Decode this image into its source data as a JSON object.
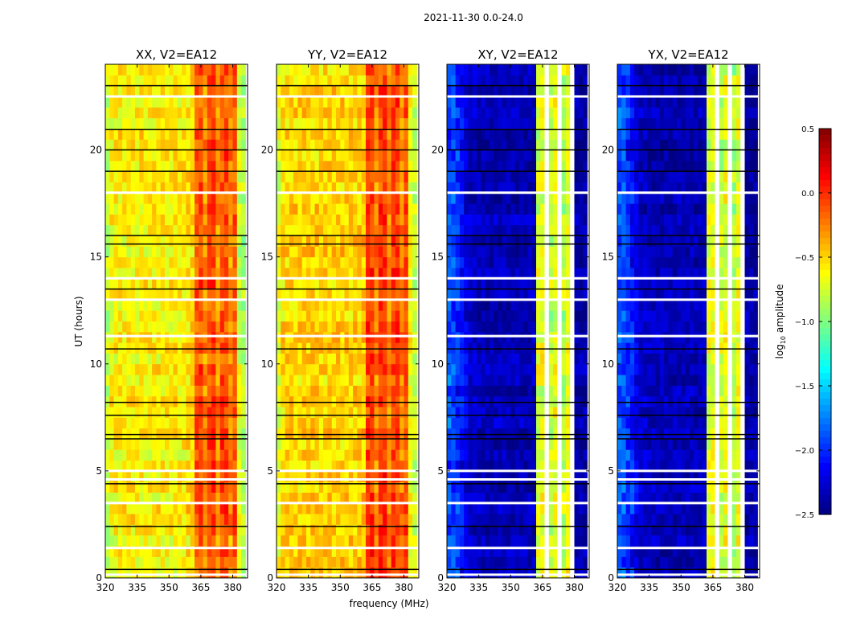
{
  "chart_data": {
    "type": "heatmap",
    "suptitle": "2021-11-30 0.0-24.0",
    "xlabel": "frequency (MHz)",
    "ylabel": "UT (hours)",
    "xlim": [
      320,
      387
    ],
    "ylim": [
      0,
      24
    ],
    "xticks": [
      "320",
      "335",
      "350",
      "365",
      "380"
    ],
    "xtick_values": [
      320,
      335,
      350,
      365,
      380
    ],
    "yticks": [
      "0",
      "5",
      "10",
      "15",
      "20"
    ],
    "ytick_values": [
      0,
      5,
      10,
      15,
      20
    ],
    "freq_bin_start": 320,
    "freq_bin_width": 2,
    "time_bin_hours": 0.5,
    "colorbar": {
      "label_main": "log",
      "label_sub": "10",
      "label_rest": " amplitude",
      "vmin": -2.5,
      "vmax": 0.5,
      "ticks": [
        "0.5",
        "0.0",
        "−0.5",
        "−1.0",
        "−1.5",
        "−2.0",
        "−2.5"
      ],
      "tick_values": [
        0.5,
        0.0,
        -0.5,
        -1.0,
        -1.5,
        -2.0,
        -2.5
      ],
      "colormap": "jet"
    },
    "panels": [
      {
        "title": "XX, V2=EA12",
        "spectrum": [
          -0.8,
          -0.65,
          -0.6,
          -0.6,
          -0.6,
          -0.6,
          -0.6,
          -0.6,
          -0.6,
          -0.6,
          -0.6,
          -0.6,
          -0.6,
          -0.6,
          -0.6,
          -0.6,
          -0.6,
          -0.6,
          -0.6,
          -0.55,
          -0.5,
          -0.15,
          -0.1,
          -0.3,
          -0.1,
          -0.05,
          -0.3,
          -0.1,
          -0.1,
          -0.3,
          -0.15,
          -0.75,
          -0.85
        ]
      },
      {
        "title": "YY, V2=EA12",
        "spectrum": [
          -0.7,
          -0.55,
          -0.5,
          -0.5,
          -0.5,
          -0.5,
          -0.5,
          -0.5,
          -0.5,
          -0.5,
          -0.5,
          -0.5,
          -0.5,
          -0.5,
          -0.5,
          -0.5,
          -0.5,
          -0.5,
          -0.5,
          -0.5,
          -0.45,
          -0.05,
          0.0,
          -0.25,
          -0.05,
          0.0,
          -0.25,
          -0.05,
          -0.05,
          -0.25,
          -0.1,
          -0.65,
          -0.8
        ]
      },
      {
        "title": "XY, V2=EA12",
        "spectrum": [
          -1.9,
          -1.9,
          -2.0,
          -2.1,
          -2.2,
          -2.3,
          -2.3,
          -2.35,
          -2.35,
          -2.35,
          -2.35,
          -2.35,
          -2.35,
          -2.35,
          -2.35,
          -2.35,
          -2.35,
          -2.35,
          -2.35,
          -2.35,
          -2.35,
          -0.75,
          -0.7,
          null,
          -0.8,
          -0.7,
          null,
          -0.85,
          -0.7,
          null,
          -2.4,
          -2.4,
          -2.4
        ]
      },
      {
        "title": "YX, V2=EA12",
        "spectrum": [
          -1.9,
          -1.9,
          -2.0,
          -2.1,
          -2.2,
          -2.3,
          -2.3,
          -2.35,
          -2.35,
          -2.35,
          -2.35,
          -2.35,
          -2.35,
          -2.35,
          -2.35,
          -2.35,
          -2.35,
          -2.35,
          -2.35,
          -2.35,
          -2.35,
          -0.75,
          -0.7,
          null,
          -0.8,
          -0.7,
          null,
          -0.85,
          -0.7,
          null,
          -2.4,
          -2.4,
          -2.4
        ]
      }
    ],
    "flagged_rows": [
      {
        "hour": 23.0,
        "kind": "black"
      },
      {
        "hour": 22.5,
        "kind": "white"
      },
      {
        "hour": 20.95,
        "kind": "black"
      },
      {
        "hour": 20.0,
        "kind": "black"
      },
      {
        "hour": 19.0,
        "kind": "black"
      },
      {
        "hour": 18.0,
        "kind": "white"
      },
      {
        "hour": 16.0,
        "kind": "black"
      },
      {
        "hour": 15.6,
        "kind": "black"
      },
      {
        "hour": 14.0,
        "kind": "white"
      },
      {
        "hour": 13.5,
        "kind": "black"
      },
      {
        "hour": 13.0,
        "kind": "white"
      },
      {
        "hour": 11.3,
        "kind": "white"
      },
      {
        "hour": 10.7,
        "kind": "black"
      },
      {
        "hour": 8.2,
        "kind": "black"
      },
      {
        "hour": 7.6,
        "kind": "black"
      },
      {
        "hour": 6.7,
        "kind": "black"
      },
      {
        "hour": 6.5,
        "kind": "black"
      },
      {
        "hour": 5.0,
        "kind": "white"
      },
      {
        "hour": 4.6,
        "kind": "white"
      },
      {
        "hour": 4.4,
        "kind": "black"
      },
      {
        "hour": 3.5,
        "kind": "white"
      },
      {
        "hour": 2.4,
        "kind": "black"
      },
      {
        "hour": 1.4,
        "kind": "white"
      },
      {
        "hour": 0.4,
        "kind": "black"
      },
      {
        "hour": 0.15,
        "kind": "white"
      }
    ]
  }
}
